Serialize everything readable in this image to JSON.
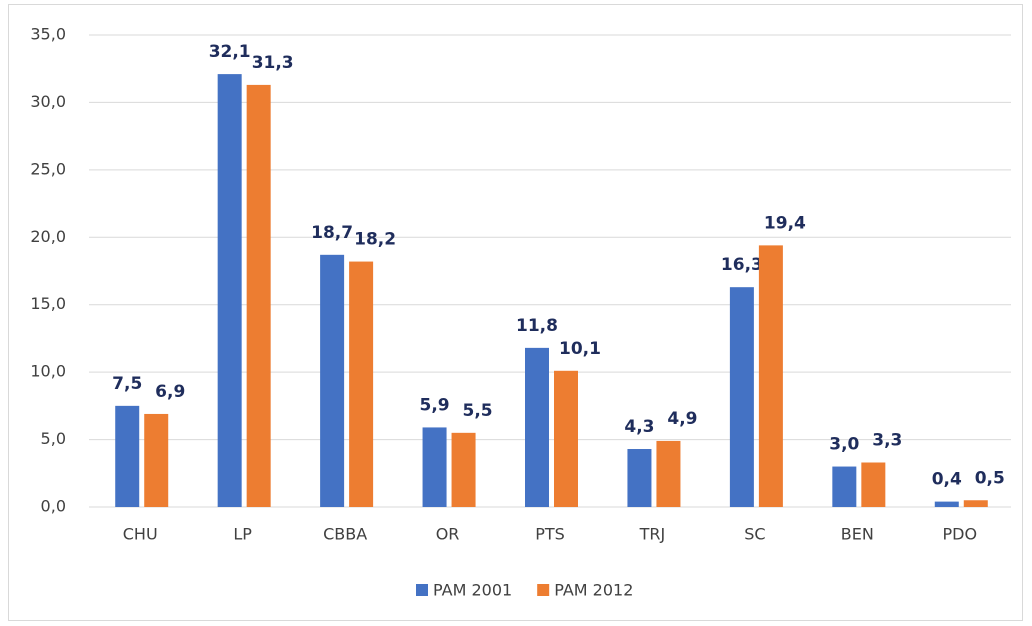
{
  "chart_data": {
    "type": "bar",
    "categories": [
      "CHU",
      "LP",
      "CBBA",
      "OR",
      "PTS",
      "TRJ",
      "SC",
      "BEN",
      "PDO"
    ],
    "series": [
      {
        "name": "PAM 2001",
        "color": "#4472c4",
        "values": [
          7.5,
          32.1,
          18.7,
          5.9,
          11.8,
          4.3,
          16.3,
          3.0,
          0.4
        ],
        "value_labels": [
          "7,5",
          "32,1",
          "18,7",
          "5,9",
          "11,8",
          "4,3",
          "16,3",
          "3,0",
          "0,4"
        ]
      },
      {
        "name": "PAM 2012",
        "color": "#ed7d31",
        "values": [
          6.9,
          31.3,
          18.2,
          5.5,
          10.1,
          4.9,
          19.4,
          3.3,
          0.5
        ],
        "value_labels": [
          "6,9",
          "31,3",
          "18,2",
          "5,5",
          "10,1",
          "4,9",
          "19,4",
          "3,3",
          "0,5"
        ]
      }
    ],
    "ylim": [
      0,
      35
    ],
    "yticks": [
      {
        "value": 0,
        "label": "0,0"
      },
      {
        "value": 5,
        "label": "5,0"
      },
      {
        "value": 10,
        "label": "10,0"
      },
      {
        "value": 15,
        "label": "15,0"
      },
      {
        "value": 20,
        "label": "20,0"
      },
      {
        "value": 25,
        "label": "25,0"
      },
      {
        "value": 30,
        "label": "30,0"
      },
      {
        "value": 35,
        "label": "35,0"
      }
    ],
    "grid": true,
    "legend": "bottom"
  }
}
